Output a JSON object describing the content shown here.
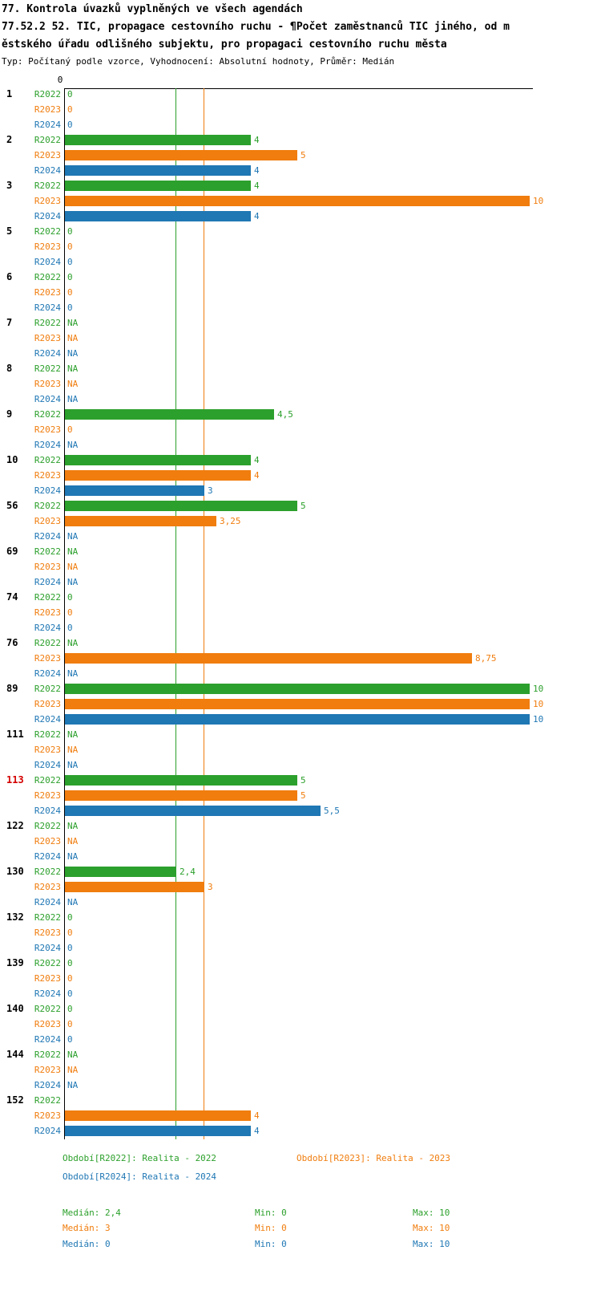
{
  "title": {
    "line1": "77. Kontrola úvazků vyplněných ve všech agendách",
    "line2": "77.52.2 52. TIC, propagace cestovního ruchu - ¶Počet zaměstnanců TIC jiného, od m",
    "line3": "ěstského úřadu odlišného subjektu, pro propagaci cestovního ruchu města",
    "line4": "Typ: Počítaný podle vzorce, Vyhodnocení: Absolutní hodnoty, Průměr: Medián"
  },
  "chart_data": {
    "type": "bar",
    "orientation": "horizontal",
    "axis": {
      "zero_label": "0",
      "min": 0,
      "max": 10
    },
    "series_names": [
      "R2022",
      "R2023",
      "R2024"
    ],
    "series_colors": [
      "#2ca02c",
      "#f07d0e",
      "#1f77b4"
    ],
    "highlight_color": "#d40000",
    "reference_lines": [
      {
        "name": "median-r2022",
        "value": 2.4,
        "color": "#2ca02c"
      },
      {
        "name": "median-r2023",
        "value": 3,
        "color": "#f07d0e"
      }
    ],
    "groups": [
      {
        "id": "1",
        "highlight": false,
        "bars": [
          {
            "label": "0",
            "value": 0
          },
          {
            "label": "0",
            "value": 0
          },
          {
            "label": "0",
            "value": 0
          }
        ]
      },
      {
        "id": "2",
        "highlight": false,
        "bars": [
          {
            "label": "4",
            "value": 4
          },
          {
            "label": "5",
            "value": 5
          },
          {
            "label": "4",
            "value": 4
          }
        ]
      },
      {
        "id": "3",
        "highlight": false,
        "bars": [
          {
            "label": "4",
            "value": 4
          },
          {
            "label": "10",
            "value": 10
          },
          {
            "label": "4",
            "value": 4
          }
        ]
      },
      {
        "id": "5",
        "highlight": false,
        "bars": [
          {
            "label": "0",
            "value": 0
          },
          {
            "label": "0",
            "value": 0
          },
          {
            "label": "0",
            "value": 0
          }
        ]
      },
      {
        "id": "6",
        "highlight": false,
        "bars": [
          {
            "label": "0",
            "value": 0
          },
          {
            "label": "0",
            "value": 0
          },
          {
            "label": "0",
            "value": 0
          }
        ]
      },
      {
        "id": "7",
        "highlight": false,
        "bars": [
          {
            "label": "NA",
            "value": null
          },
          {
            "label": "NA",
            "value": null
          },
          {
            "label": "NA",
            "value": null
          }
        ]
      },
      {
        "id": "8",
        "highlight": false,
        "bars": [
          {
            "label": "NA",
            "value": null
          },
          {
            "label": "NA",
            "value": null
          },
          {
            "label": "NA",
            "value": null
          }
        ]
      },
      {
        "id": "9",
        "highlight": false,
        "bars": [
          {
            "label": "4,5",
            "value": 4.5
          },
          {
            "label": "0",
            "value": 0
          },
          {
            "label": "NA",
            "value": null
          }
        ]
      },
      {
        "id": "10",
        "highlight": false,
        "bars": [
          {
            "label": "4",
            "value": 4
          },
          {
            "label": "4",
            "value": 4
          },
          {
            "label": "3",
            "value": 3
          }
        ]
      },
      {
        "id": "56",
        "highlight": false,
        "bars": [
          {
            "label": "5",
            "value": 5
          },
          {
            "label": "3,25",
            "value": 3.25
          },
          {
            "label": "NA",
            "value": null
          }
        ]
      },
      {
        "id": "69",
        "highlight": false,
        "bars": [
          {
            "label": "NA",
            "value": null
          },
          {
            "label": "NA",
            "value": null
          },
          {
            "label": "NA",
            "value": null
          }
        ]
      },
      {
        "id": "74",
        "highlight": false,
        "bars": [
          {
            "label": "0",
            "value": 0
          },
          {
            "label": "0",
            "value": 0
          },
          {
            "label": "0",
            "value": 0
          }
        ]
      },
      {
        "id": "76",
        "highlight": false,
        "bars": [
          {
            "label": "NA",
            "value": null
          },
          {
            "label": "8,75",
            "value": 8.75
          },
          {
            "label": "NA",
            "value": null
          }
        ]
      },
      {
        "id": "89",
        "highlight": false,
        "bars": [
          {
            "label": "10",
            "value": 10
          },
          {
            "label": "10",
            "value": 10
          },
          {
            "label": "10",
            "value": 10
          }
        ]
      },
      {
        "id": "111",
        "highlight": false,
        "bars": [
          {
            "label": "NA",
            "value": null
          },
          {
            "label": "NA",
            "value": null
          },
          {
            "label": "NA",
            "value": null
          }
        ]
      },
      {
        "id": "113",
        "highlight": true,
        "bars": [
          {
            "label": "5",
            "value": 5
          },
          {
            "label": "5",
            "value": 5
          },
          {
            "label": "5,5",
            "value": 5.5
          }
        ]
      },
      {
        "id": "122",
        "highlight": false,
        "bars": [
          {
            "label": "NA",
            "value": null
          },
          {
            "label": "NA",
            "value": null
          },
          {
            "label": "NA",
            "value": null
          }
        ]
      },
      {
        "id": "130",
        "highlight": false,
        "bars": [
          {
            "label": "2,4",
            "value": 2.4
          },
          {
            "label": "3",
            "value": 3
          },
          {
            "label": "NA",
            "value": null
          }
        ]
      },
      {
        "id": "132",
        "highlight": false,
        "bars": [
          {
            "label": "0",
            "value": 0
          },
          {
            "label": "0",
            "value": 0
          },
          {
            "label": "0",
            "value": 0
          }
        ]
      },
      {
        "id": "139",
        "highlight": false,
        "bars": [
          {
            "label": "0",
            "value": 0
          },
          {
            "label": "0",
            "value": 0
          },
          {
            "label": "0",
            "value": 0
          }
        ]
      },
      {
        "id": "140",
        "highlight": false,
        "bars": [
          {
            "label": "0",
            "value": 0
          },
          {
            "label": "0",
            "value": 0
          },
          {
            "label": "0",
            "value": 0
          }
        ]
      },
      {
        "id": "144",
        "highlight": false,
        "bars": [
          {
            "label": "NA",
            "value": null
          },
          {
            "label": "NA",
            "value": null
          },
          {
            "label": "NA",
            "value": null
          }
        ]
      },
      {
        "id": "152",
        "highlight": false,
        "bars": [
          {
            "label": "",
            "value": null
          },
          {
            "label": "4",
            "value": 4
          },
          {
            "label": "4",
            "value": 4
          }
        ]
      }
    ]
  },
  "legend": {
    "r2022": {
      "label": "Období[R2022]: Realita - 2022",
      "color": "#2ca02c"
    },
    "r2023": {
      "label": "Období[R2023]: Realita - 2023",
      "color": "#f07d0e"
    },
    "r2024": {
      "label": "Období[R2024]: Realita - 2024",
      "color": "#1f77b4"
    }
  },
  "stats": {
    "r2022": {
      "median": "Medián: 2,4",
      "min": "Min: 0",
      "max": "Max: 10",
      "color": "#2ca02c"
    },
    "r2023": {
      "median": "Medián: 3",
      "min": "Min: 0",
      "max": "Max: 10",
      "color": "#f07d0e"
    },
    "r2024": {
      "median": "Medián: 0",
      "min": "Min: 0",
      "max": "Max: 10",
      "color": "#1f77b4"
    }
  }
}
